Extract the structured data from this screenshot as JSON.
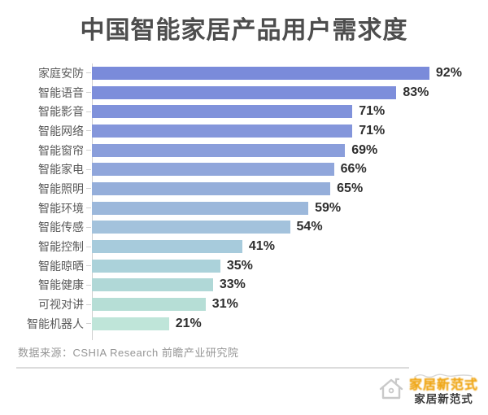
{
  "title": "中国智能家居产品用户需求度",
  "source": "数据来源：CSHIA Research 前瞻产业研究院",
  "brand": {
    "wordmark": "家居新范式",
    "name": "家居新范式",
    "accent_color": "#f0a818",
    "house_icon_color": "#c9c9c9"
  },
  "chart_data": {
    "type": "bar",
    "orientation": "horizontal",
    "title": "中国智能家居产品用户需求度",
    "xlabel": "",
    "ylabel": "",
    "xlim": [
      0,
      100
    ],
    "grid": false,
    "legend": false,
    "value_label_position": "end-of-bar",
    "categories": [
      "家庭安防",
      "智能语音",
      "智能影音",
      "智能网络",
      "智能窗帘",
      "智能家电",
      "智能照明",
      "智能环境",
      "智能传感",
      "智能控制",
      "智能晾晒",
      "智能健康",
      "可视对讲",
      "智能机器人"
    ],
    "values": [
      92,
      83,
      71,
      71,
      69,
      66,
      65,
      59,
      54,
      41,
      35,
      33,
      31,
      21
    ],
    "value_labels": [
      "92%",
      "83%",
      "71%",
      "71%",
      "69%",
      "66%",
      "65%",
      "59%",
      "54%",
      "41%",
      "35%",
      "33%",
      "31%",
      "21%"
    ],
    "bar_colors": [
      "#7a8bda",
      "#7d8edb",
      "#8092db",
      "#8496db",
      "#8a9edb",
      "#90a6db",
      "#95aeda",
      "#9cb8db",
      "#a3c2dc",
      "#a7cbdc",
      "#abd2da",
      "#b0d8d7",
      "#b6ded6",
      "#bfe5d9"
    ],
    "axis_color": "#cfcfcf"
  }
}
